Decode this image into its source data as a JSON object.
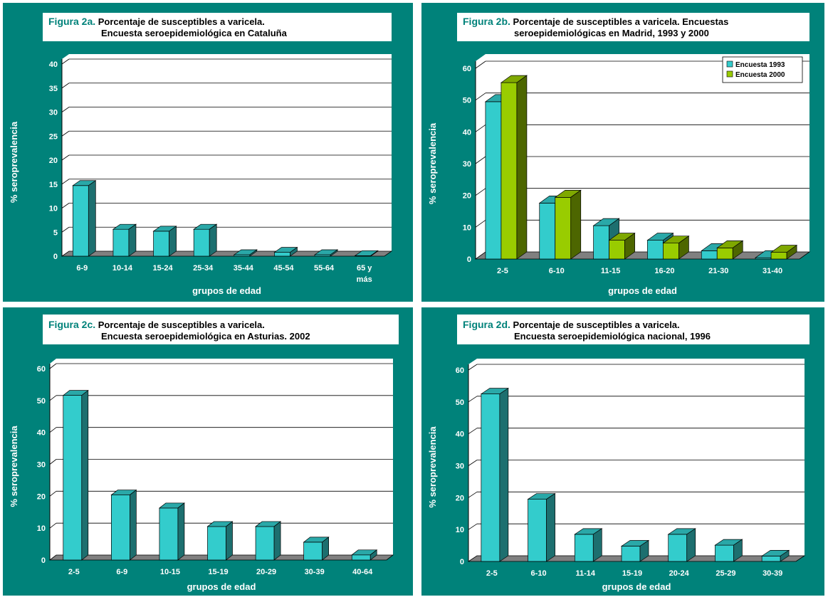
{
  "colors": {
    "panel_bg": "#00827a",
    "plot_bg": "#ffffff",
    "floor": "#808080",
    "bar_teal_front": "#33cccc",
    "bar_teal_top": "#2aa8a8",
    "bar_teal_side": "#1d6f6f",
    "bar_green_front": "#99cc00",
    "bar_green_top": "#7fa800",
    "bar_green_side": "#4d6600"
  },
  "chart_data": [
    {
      "type": "bar",
      "fig_label": "Figura 2a.",
      "title_line1": "Porcentaje de susceptibles a varicela.",
      "title_line2": "Encuesta seroepidemiológica en Cataluña",
      "ylabel": "% seroprevalencia",
      "xlabel": "grupos de edad",
      "ylim": [
        0,
        40
      ],
      "yticks": [
        "0",
        "5",
        "10",
        "15",
        "20",
        "25",
        "30",
        "35",
        "40"
      ],
      "categories": [
        "6-9",
        "10-14",
        "15-24",
        "25-34",
        "35-44",
        "45-54",
        "55-64",
        "65 y\nmás"
      ],
      "series": [
        {
          "values": [
            14.7,
            5.6,
            5.2,
            5.6,
            0.3,
            0.8,
            0.3,
            0.1
          ]
        }
      ],
      "grid": true
    },
    {
      "type": "bar",
      "fig_label": "Figura 2b.",
      "title_line1": "Porcentaje de susceptibles a varicela. Encuestas",
      "title_line2": "seroepidemiológicas en Madrid, 1993 y 2000",
      "ylabel": "% seroprevalencia",
      "xlabel": "grupos de edad",
      "ylim": [
        0,
        60
      ],
      "yticks": [
        "0",
        "10",
        "20",
        "30",
        "40",
        "50",
        "60"
      ],
      "categories": [
        "2-5",
        "6-10",
        "11-15",
        "16-20",
        "21-30",
        "31-40"
      ],
      "series": [
        {
          "name": "Encuesta 1993",
          "values": [
            49.5,
            17.6,
            10.5,
            5.9,
            2.6,
            0.4
          ]
        },
        {
          "name": "Encuesta 2000",
          "values": [
            55.5,
            19.4,
            5.9,
            5.0,
            3.5,
            2.1
          ]
        }
      ],
      "legend": "top-right",
      "grid": true
    },
    {
      "type": "bar",
      "fig_label": "Figura 2c.",
      "title_line1": "Porcentaje de susceptibles a varicela.",
      "title_line2": "Encuesta seroepidemiológica en Asturias. 2002",
      "ylabel": "% seroprevalencia",
      "xlabel": "grupos de edad",
      "ylim": [
        0,
        60
      ],
      "yticks": [
        "0",
        "10",
        "20",
        "30",
        "40",
        "50",
        "60"
      ],
      "categories": [
        "2-5",
        "6-9",
        "10-15",
        "15-19",
        "20-29",
        "30-39",
        "40-64"
      ],
      "series": [
        {
          "values": [
            51.6,
            20.4,
            16.3,
            10.5,
            10.5,
            5.6,
            1.6
          ]
        }
      ],
      "grid": true
    },
    {
      "type": "bar",
      "fig_label": "Figura 2d.",
      "title_line1": "Porcentaje de susceptibles a varicela.",
      "title_line2": "Encuesta seroepidemiológica nacional, 1996",
      "ylabel": "% seroprevalencia",
      "xlabel": "grupos de edad",
      "ylim": [
        0,
        60
      ],
      "yticks": [
        "0",
        "10",
        "20",
        "30",
        "40",
        "50",
        "60"
      ],
      "categories": [
        "2-5",
        "6-10",
        "11-14",
        "15-19",
        "20-24",
        "25-29",
        "30-39"
      ],
      "series": [
        {
          "values": [
            52.5,
            19.5,
            8.5,
            4.8,
            8.5,
            5.1,
            1.7
          ]
        }
      ],
      "grid": true
    }
  ]
}
